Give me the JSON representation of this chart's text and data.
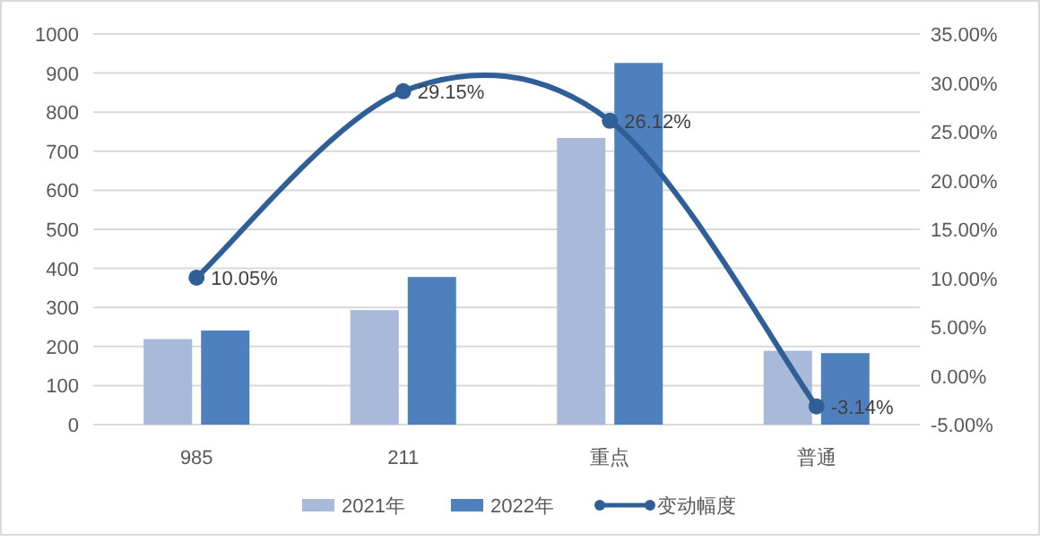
{
  "chart_data": {
    "type": "bar",
    "categories": [
      "985",
      "211",
      "重点",
      "普通"
    ],
    "series": [
      {
        "name": "2021年",
        "color": "#a9b9d9",
        "values": [
          219,
          293,
          734,
          189
        ]
      },
      {
        "name": "2022年",
        "color": "#4e80bd",
        "values": [
          241,
          378,
          926,
          183
        ]
      },
      {
        "name": "变动幅度",
        "type": "line",
        "axis": "y2",
        "color": "#2f5f96",
        "marker": "circle",
        "values": [
          10.05,
          29.15,
          26.12,
          -3.14
        ],
        "value_labels": [
          "10.05%",
          "29.15%",
          "26.12%",
          "-3.14%"
        ]
      }
    ],
    "ylim": [
      0,
      1000
    ],
    "yticks": [
      0,
      100,
      200,
      300,
      400,
      500,
      600,
      700,
      800,
      900,
      1000
    ],
    "y2lim": [
      -5,
      35
    ],
    "y2ticks": [
      {
        "value": -5,
        "label": "-5.00%"
      },
      {
        "value": 0,
        "label": "0.00%"
      },
      {
        "value": 5,
        "label": "5.00%"
      },
      {
        "value": 10,
        "label": "10.00%"
      },
      {
        "value": 15,
        "label": "15.00%"
      },
      {
        "value": 20,
        "label": "20.00%"
      },
      {
        "value": 25,
        "label": "25.00%"
      },
      {
        "value": 30,
        "label": "30.00%"
      },
      {
        "value": 35,
        "label": "35.00%"
      }
    ],
    "grid": "y",
    "legend": "bottom"
  }
}
